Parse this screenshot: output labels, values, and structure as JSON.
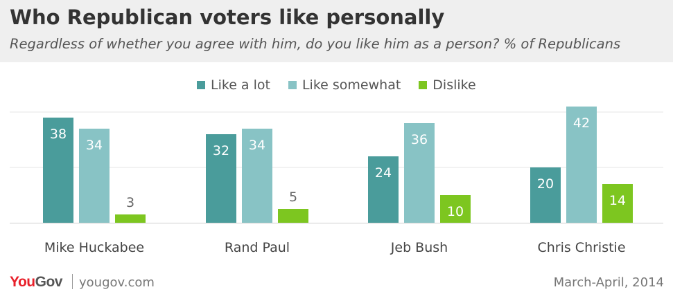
{
  "chart_data": {
    "type": "bar",
    "title": "Who Republican voters like personally",
    "subtitle": "Regardless of whether you agree with him, do you like him as a person?  % of Republicans",
    "categories": [
      "Mike Huckabee",
      "Rand Paul",
      "Jeb Bush",
      "Chris Christie"
    ],
    "series": [
      {
        "name": "Like a lot",
        "color": "#4a9c9b",
        "values": [
          38,
          32,
          24,
          20
        ]
      },
      {
        "name": "Like somewhat",
        "color": "#88c3c5",
        "values": [
          34,
          34,
          36,
          42
        ]
      },
      {
        "name": "Dislike",
        "color": "#7dc620",
        "values": [
          3,
          5,
          10,
          14
        ]
      }
    ],
    "ylim": [
      0,
      40
    ],
    "grid": true,
    "legend_position": "top-center",
    "data_labels": true
  },
  "footer": {
    "logo_you": "You",
    "logo_gov": "Gov",
    "site": "yougov.com",
    "date": "March-April, 2014"
  }
}
